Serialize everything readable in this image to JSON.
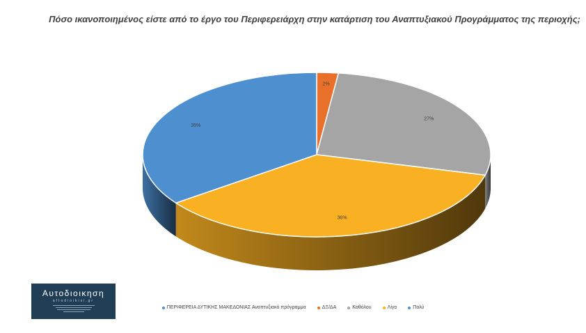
{
  "chart_data": {
    "type": "pie",
    "title": "Πόσο ικανοποιημένος είστε από το έργο του Περιφερειάρχη στην κατάρτιση του Αναπτυξιακού Προγράμματος της περιοχής;",
    "legend_series_name": "ΠΕΡΙΦΕΡΕΙΑ ΔΥΤΙΚΗΣ ΜΑΚΕΔΟΝΙΑΣ Αναπτυξιακό πρόγραμμα",
    "legend_position": "bottom",
    "slices": [
      {
        "label": "ΔΞ/ΔΑ",
        "value": 2,
        "display": "2%",
        "color": "#e8702a"
      },
      {
        "label": "Καθόλου",
        "value": 27,
        "display": "27%",
        "color": "#a5a5a5"
      },
      {
        "label": "Λίγο",
        "value": 36,
        "display": "36%",
        "color": "#f9b022"
      },
      {
        "label": "Πολύ",
        "value": 35,
        "display": "35%",
        "color": "#4e8fd0"
      }
    ]
  },
  "logo": {
    "name": "Αυτοδιοικηση",
    "domain": "aftodioikisi.gr"
  }
}
